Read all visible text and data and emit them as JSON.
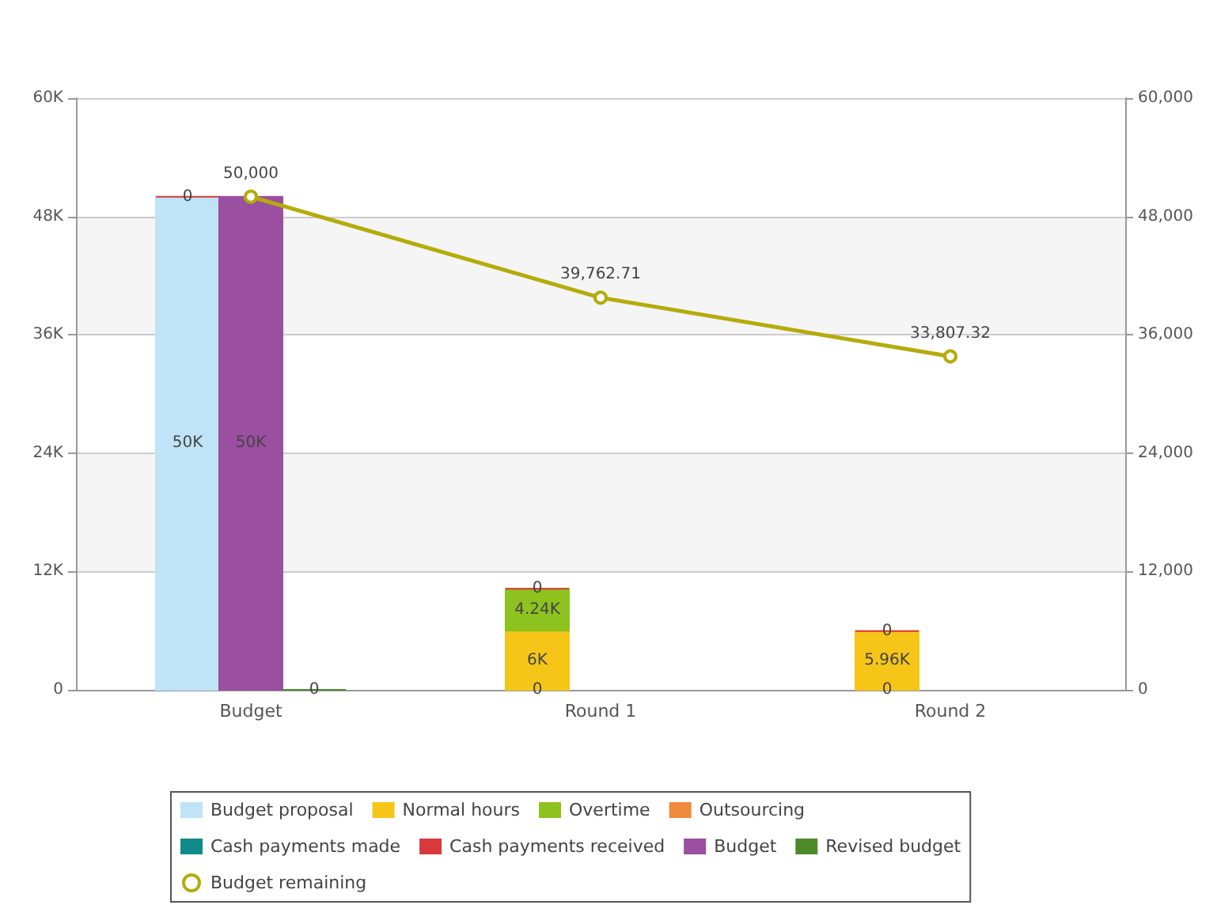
{
  "chart_data": {
    "type": "bar",
    "categories": [
      "Budget",
      "Round 1",
      "Round 2"
    ],
    "series": [
      {
        "name": "Budget proposal",
        "color": "#bfe4f7",
        "base": [
          0,
          0,
          0
        ],
        "values": [
          50000,
          0,
          0
        ],
        "value_labels": [
          "50K",
          "0",
          "0"
        ]
      },
      {
        "name": "Normal hours",
        "color": "#f5c518",
        "base": [
          null,
          0,
          0
        ],
        "values": [
          null,
          6000,
          5960
        ],
        "value_labels": [
          null,
          "6K",
          "5.96K"
        ]
      },
      {
        "name": "Overtime",
        "color": "#8dc21f",
        "base": [
          null,
          6000,
          null
        ],
        "values": [
          null,
          4240,
          null
        ],
        "value_labels": [
          null,
          "4.24K",
          null
        ]
      },
      {
        "name": "Outsourcing",
        "color": "#f08a3c",
        "values": [
          null,
          null,
          null
        ]
      },
      {
        "name": "Cash payments made",
        "color": "#138a8a",
        "values": [
          null,
          null,
          null
        ]
      },
      {
        "name": "Cash payments received",
        "color": "#d9393c",
        "base": [
          50000,
          10240,
          5960
        ],
        "values": [
          0,
          0,
          0
        ],
        "value_labels": [
          "0",
          "0",
          "0"
        ]
      },
      {
        "name": "Budget",
        "color": "#9b4fa0",
        "base": [
          0,
          null,
          null
        ],
        "values": [
          50000,
          null,
          null
        ],
        "value_labels": [
          "50K",
          null,
          null
        ]
      },
      {
        "name": "Revised budget",
        "color": "#4f8a2a",
        "base": [
          0,
          null,
          null
        ],
        "values": [
          0,
          null,
          null
        ],
        "value_labels": [
          "0",
          null,
          null
        ]
      },
      {
        "name": "Budget remaining",
        "type": "line",
        "color": "#b5ab0c",
        "marker": "circle",
        "values": [
          50000,
          39762.71,
          33807.32
        ],
        "value_labels": [
          "50,000",
          "39,762.71",
          "33,807.32"
        ]
      }
    ],
    "ylim": [
      0,
      60000
    ],
    "yticks": [
      0,
      {
        "value": 12000,
        "label": "12K"
      },
      {
        "value": 24000,
        "label": "24K"
      },
      {
        "value": 36000,
        "label": "36K"
      },
      {
        "value": 48000,
        "label": "48K"
      },
      {
        "value": 60000,
        "label": "60K"
      }
    ],
    "y2lim": [
      0,
      60000
    ],
    "y2ticks": [
      0,
      {
        "value": 12000,
        "label": "12,000"
      },
      {
        "value": 24000,
        "label": "24,000"
      },
      {
        "value": 36000,
        "label": "36,000"
      },
      {
        "value": 48000,
        "label": "48,000"
      },
      {
        "value": 60000,
        "label": "60,000"
      }
    ],
    "grid": "y",
    "legend": "bottom"
  }
}
